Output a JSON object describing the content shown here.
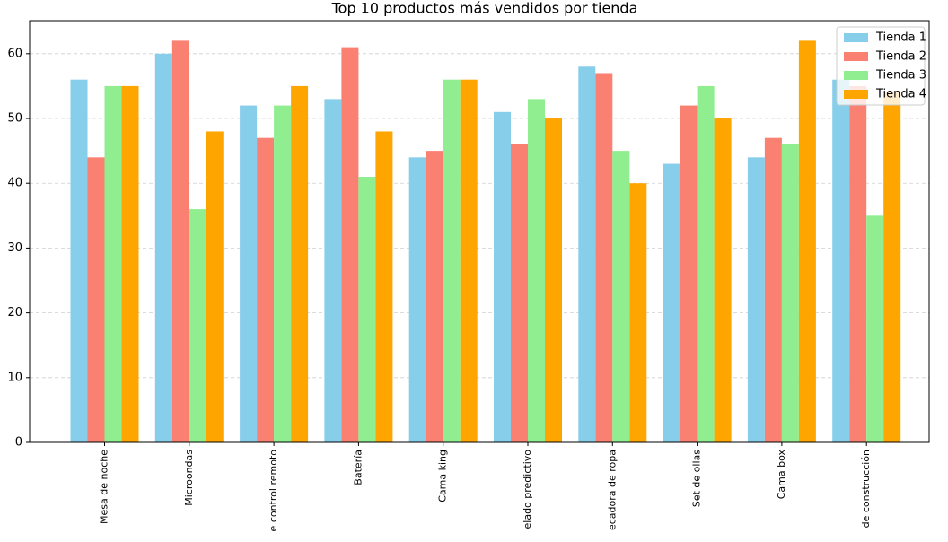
{
  "chart_data": {
    "type": "bar",
    "title": "Top 10 productos más vendidos por tienda",
    "categories": [
      "Mesa de noche",
      "Microondas",
      "e control remoto",
      "Batería",
      "Cama king",
      "elado predictivo",
      "ecadora de ropa",
      "Set de ollas",
      "Cama box",
      "de construcción"
    ],
    "series": [
      {
        "name": "Tienda 1",
        "color": "#87ceeb",
        "values": [
          56,
          60,
          52,
          53,
          44,
          51,
          58,
          43,
          44,
          56
        ]
      },
      {
        "name": "Tienda 2",
        "color": "#fa8072",
        "values": [
          44,
          62,
          47,
          61,
          45,
          46,
          57,
          52,
          47,
          55
        ]
      },
      {
        "name": "Tienda 3",
        "color": "#90ee90",
        "values": [
          55,
          36,
          52,
          41,
          56,
          53,
          45,
          55,
          46,
          35
        ]
      },
      {
        "name": "Tienda 4",
        "color": "#ffa500",
        "values": [
          55,
          48,
          55,
          48,
          56,
          50,
          40,
          50,
          62,
          54
        ]
      }
    ],
    "ylim": [
      0,
      65.1
    ],
    "yticks": [
      0,
      10,
      20,
      30,
      40,
      50,
      60
    ],
    "grid": true,
    "legend": "upper right"
  }
}
